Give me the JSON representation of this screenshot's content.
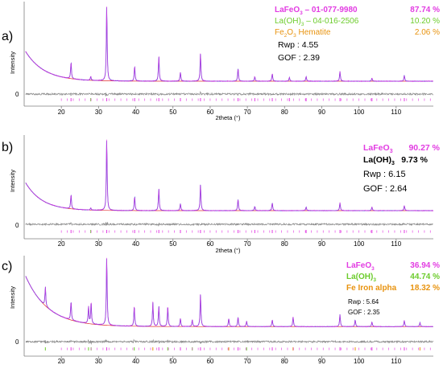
{
  "figure": {
    "background": "#ffffff"
  },
  "colors": {
    "magenta": "#e23ce2",
    "green": "#6ccc2c",
    "orange": "#e8930f",
    "blue": "#2f49d6",
    "red": "#e23030",
    "diff": "#8a8a8a",
    "axis": "#7f7f7f",
    "text": "#000000"
  },
  "panels": [
    {
      "label": "a)",
      "ylabel": "Intensity",
      "xlabel": "2theta (°)",
      "zero_label": "0",
      "legend": [
        {
          "name": "LaFeO",
          "sub": "3",
          "rest": " – 01-077-9980",
          "value": "87.74 %",
          "color": "#e23ce2"
        },
        {
          "name": "La(OH)",
          "sub": "3",
          "rest": " – 04-016-2506",
          "value": "10.20 %",
          "color": "#6ccc2c"
        },
        {
          "name": "Fe",
          "sub": "2",
          "rest": "O",
          "sub2": "3",
          "rest2": " Hematite",
          "value": "2.06 %",
          "color": "#e8930f"
        }
      ],
      "rwp": "Rwp : 4.55",
      "gof": "GOF : 2.39"
    },
    {
      "label": "b)",
      "ylabel": "Intensity",
      "xlabel": "2theta (°)",
      "zero_label": "0",
      "legend": [
        {
          "name": "LaFeO",
          "sub": "3",
          "rest": "",
          "value": "90.27 %",
          "color": "#e23ce2"
        },
        {
          "name": "La(OH)",
          "sub": "3",
          "rest": "",
          "value": "9.73 %",
          "color": "#000000"
        }
      ],
      "rwp": "Rwp : 6.15",
      "gof": "GOF : 2.64"
    },
    {
      "label": "c)",
      "ylabel": "Intensity",
      "xlabel": "",
      "zero_label": "0",
      "legend": [
        {
          "name": "LaFeO",
          "sub": "3",
          "rest": "",
          "value": "36.94 %",
          "color": "#e23ce2"
        },
        {
          "name": "La(OH)",
          "sub": "3",
          "rest": "",
          "value": "44.74 %",
          "color": "#6ccc2c"
        },
        {
          "name": "Fe Iron alpha",
          "sub": "",
          "rest": "",
          "value": "18.32 %",
          "color": "#e8930f"
        }
      ],
      "rwp": "Rwp : 5.64",
      "gof": "GOF : 2.35"
    }
  ],
  "chart_data": [
    {
      "type": "line",
      "title": "",
      "xlabel": "2theta (°)",
      "ylabel": "Intensity",
      "xlim": [
        10,
        120
      ],
      "x_ticks": [
        20,
        30,
        40,
        50,
        60,
        70,
        80,
        90,
        100,
        110
      ],
      "baseline": {
        "start_level": 0.42,
        "decay": 5.0,
        "end_level": 0.0
      },
      "peaks": [
        {
          "x": 22.6,
          "h": 0.22,
          "phase": "LaFeO3"
        },
        {
          "x": 27.9,
          "h": 0.05,
          "phase": "La(OH)3"
        },
        {
          "x": 32.2,
          "h": 1.0,
          "phase": "LaFeO3"
        },
        {
          "x": 39.7,
          "h": 0.2,
          "phase": "LaFeO3"
        },
        {
          "x": 46.2,
          "h": 0.33,
          "phase": "LaFeO3"
        },
        {
          "x": 52.0,
          "h": 0.12,
          "phase": "LaFeO3"
        },
        {
          "x": 57.4,
          "h": 0.37,
          "phase": "LaFeO3"
        },
        {
          "x": 67.5,
          "h": 0.17,
          "phase": "LaFeO3"
        },
        {
          "x": 72.0,
          "h": 0.06,
          "phase": "LaFeO3"
        },
        {
          "x": 76.7,
          "h": 0.1,
          "phase": "LaFeO3"
        },
        {
          "x": 81.3,
          "h": 0.05,
          "phase": "LaFeO3"
        },
        {
          "x": 85.8,
          "h": 0.06,
          "phase": "LaFeO3"
        },
        {
          "x": 94.9,
          "h": 0.13,
          "phase": "LaFeO3"
        },
        {
          "x": 103.5,
          "h": 0.04,
          "phase": "LaFeO3"
        },
        {
          "x": 112.2,
          "h": 0.08,
          "phase": "LaFeO3"
        }
      ]
    },
    {
      "type": "line",
      "title": "",
      "xlabel": "2theta (°)",
      "ylabel": "Intensity",
      "xlim": [
        10,
        120
      ],
      "x_ticks": [
        20,
        30,
        40,
        50,
        60,
        70,
        80,
        90,
        100,
        110
      ],
      "baseline": {
        "start_level": 0.42,
        "decay": 4.5,
        "end_level": 0.0
      },
      "peaks": [
        {
          "x": 22.6,
          "h": 0.2,
          "phase": "LaFeO3"
        },
        {
          "x": 27.9,
          "h": 0.03,
          "phase": "La(OH)3"
        },
        {
          "x": 32.2,
          "h": 1.0,
          "phase": "LaFeO3"
        },
        {
          "x": 39.7,
          "h": 0.2,
          "phase": "LaFeO3"
        },
        {
          "x": 46.2,
          "h": 0.31,
          "phase": "LaFeO3"
        },
        {
          "x": 52.0,
          "h": 0.1,
          "phase": "LaFeO3"
        },
        {
          "x": 57.4,
          "h": 0.37,
          "phase": "LaFeO3"
        },
        {
          "x": 67.5,
          "h": 0.16,
          "phase": "LaFeO3"
        },
        {
          "x": 72.0,
          "h": 0.06,
          "phase": "LaFeO3"
        },
        {
          "x": 76.7,
          "h": 0.11,
          "phase": "LaFeO3"
        },
        {
          "x": 85.8,
          "h": 0.05,
          "phase": "LaFeO3"
        },
        {
          "x": 94.9,
          "h": 0.11,
          "phase": "LaFeO3"
        },
        {
          "x": 103.5,
          "h": 0.05,
          "phase": "LaFeO3"
        },
        {
          "x": 112.2,
          "h": 0.07,
          "phase": "LaFeO3"
        }
      ]
    },
    {
      "type": "line",
      "title": "",
      "xlabel": "",
      "ylabel": "Intensity",
      "xlim": [
        10,
        120
      ],
      "x_ticks": [
        20,
        30,
        40,
        50,
        60,
        70,
        80,
        90,
        100,
        110
      ],
      "baseline": {
        "start_level": 0.8,
        "decay": 6.0,
        "end_level": 0.02
      },
      "peaks": [
        {
          "x": 15.7,
          "h": 0.28,
          "phase": "La(OH)3"
        },
        {
          "x": 22.6,
          "h": 0.28,
          "phase": "LaFeO3"
        },
        {
          "x": 27.3,
          "h": 0.25,
          "phase": "La(OH)3"
        },
        {
          "x": 28.0,
          "h": 0.32,
          "phase": "La(OH)3"
        },
        {
          "x": 32.2,
          "h": 1.0,
          "phase": "LaFeO3"
        },
        {
          "x": 39.6,
          "h": 0.3,
          "phase": "La(OH)3"
        },
        {
          "x": 44.6,
          "h": 0.35,
          "phase": "Fe"
        },
        {
          "x": 46.2,
          "h": 0.3,
          "phase": "LaFeO3"
        },
        {
          "x": 48.6,
          "h": 0.3,
          "phase": "La(OH)3"
        },
        {
          "x": 52.0,
          "h": 0.12,
          "phase": "LaFeO3"
        },
        {
          "x": 55.2,
          "h": 0.1,
          "phase": "La(OH)3"
        },
        {
          "x": 57.4,
          "h": 0.48,
          "phase": "LaFeO3"
        },
        {
          "x": 65.0,
          "h": 0.12,
          "phase": "Fe"
        },
        {
          "x": 67.5,
          "h": 0.14,
          "phase": "LaFeO3"
        },
        {
          "x": 69.8,
          "h": 0.08,
          "phase": "La(OH)3"
        },
        {
          "x": 76.7,
          "h": 0.1,
          "phase": "LaFeO3"
        },
        {
          "x": 82.3,
          "h": 0.14,
          "phase": "Fe"
        },
        {
          "x": 94.9,
          "h": 0.18,
          "phase": "LaFeO3"
        },
        {
          "x": 99.0,
          "h": 0.1,
          "phase": "Fe"
        },
        {
          "x": 103.5,
          "h": 0.07,
          "phase": "LaFeO3"
        },
        {
          "x": 112.2,
          "h": 0.09,
          "phase": "LaFeO3"
        },
        {
          "x": 116.4,
          "h": 0.06,
          "phase": "Fe"
        }
      ]
    }
  ]
}
